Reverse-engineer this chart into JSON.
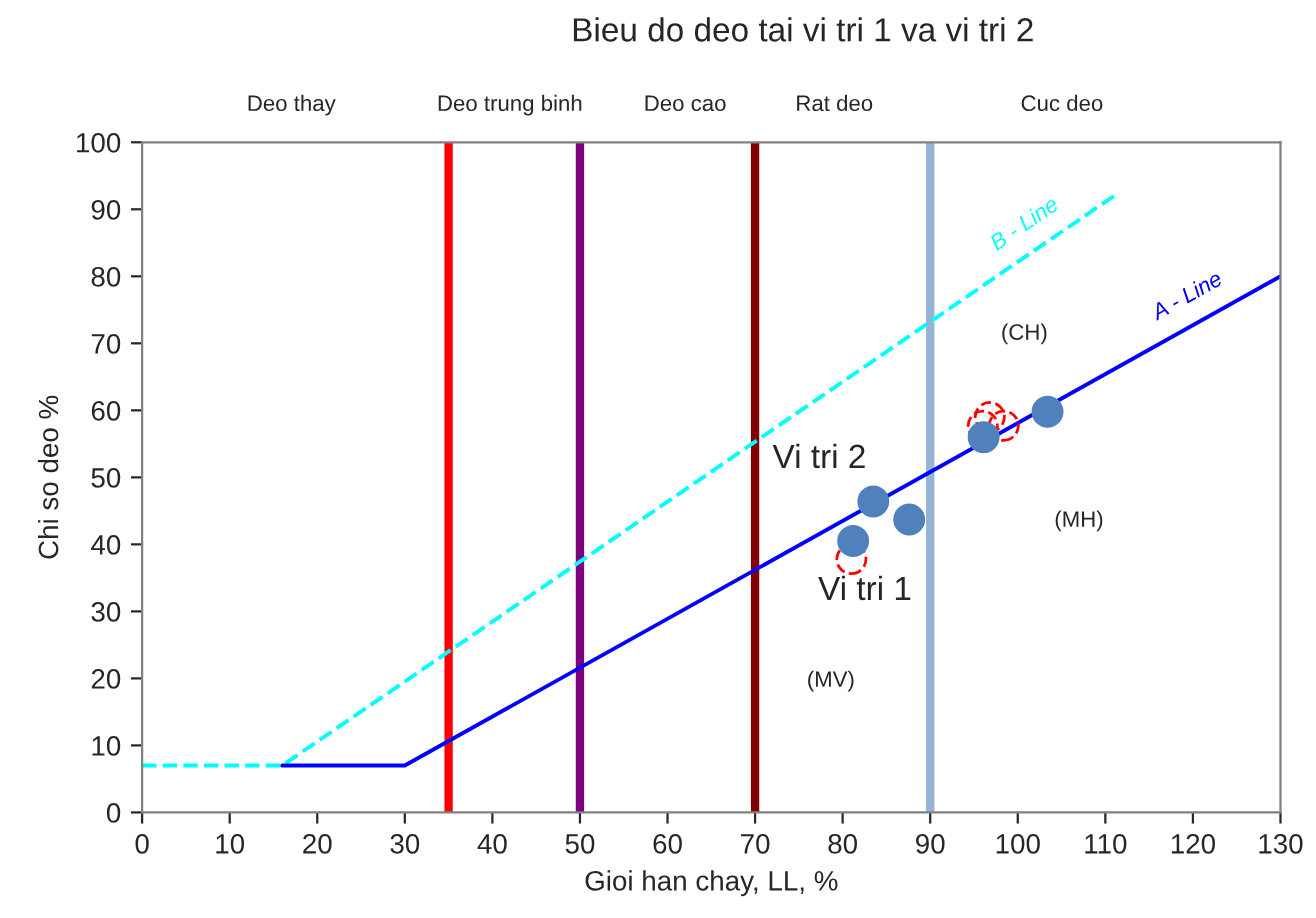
{
  "chart_data": {
    "type": "line",
    "title": "Bieu do deo tai vi tri 1 va vi tri 2",
    "xlabel": "Gioi han chay, LL, %",
    "ylabel": "Chi so deo %",
    "xlim": [
      0,
      130
    ],
    "ylim": [
      0,
      100
    ],
    "xticks": [
      0,
      10,
      20,
      30,
      40,
      50,
      60,
      70,
      80,
      90,
      100,
      110,
      120,
      130
    ],
    "yticks": [
      0,
      10,
      20,
      30,
      40,
      50,
      60,
      70,
      80,
      90,
      100
    ],
    "grid": false,
    "legend": false,
    "series": [
      {
        "name": "B - Line",
        "color": "#00ffff",
        "line_style": "dashed",
        "x": [
          0,
          16,
          111
        ],
        "values": [
          7,
          7,
          92
        ]
      },
      {
        "name": "A - Line",
        "color": "#0000ff",
        "line_style": "solid",
        "x": [
          16,
          30,
          130
        ],
        "values": [
          7,
          7,
          80
        ]
      },
      {
        "type": "scatter",
        "color": "#4f81bd",
        "marker": "circle",
        "x": [
          81.2,
          83.5,
          87.6,
          96.1,
          103.4
        ],
        "values": [
          40.5,
          46.4,
          43.7,
          56,
          59.8
        ]
      },
      {
        "type": "scatter",
        "color": "#ff0000",
        "marker": "circle",
        "line_style": "dashed",
        "x": [
          81,
          96,
          96.8,
          98.4
        ],
        "values": [
          37.8,
          57.7,
          59,
          57.7
        ]
      }
    ],
    "ref_lines": [
      {
        "axis": "x",
        "value": 35,
        "color": "#ff0000"
      },
      {
        "axis": "x",
        "value": 50,
        "color": "#7f007f"
      },
      {
        "axis": "x",
        "value": 70,
        "color": "#800000"
      },
      {
        "axis": "x",
        "value": 90,
        "color": "#95b3d7"
      }
    ],
    "annotations": [
      "Deo thay",
      "Deo trung binh",
      "Deo cao",
      "Rat deo",
      "Cuc deo",
      "(CH)",
      "(MH)",
      "(MV)",
      "Vi tri 2",
      "Vi tri 1"
    ]
  }
}
